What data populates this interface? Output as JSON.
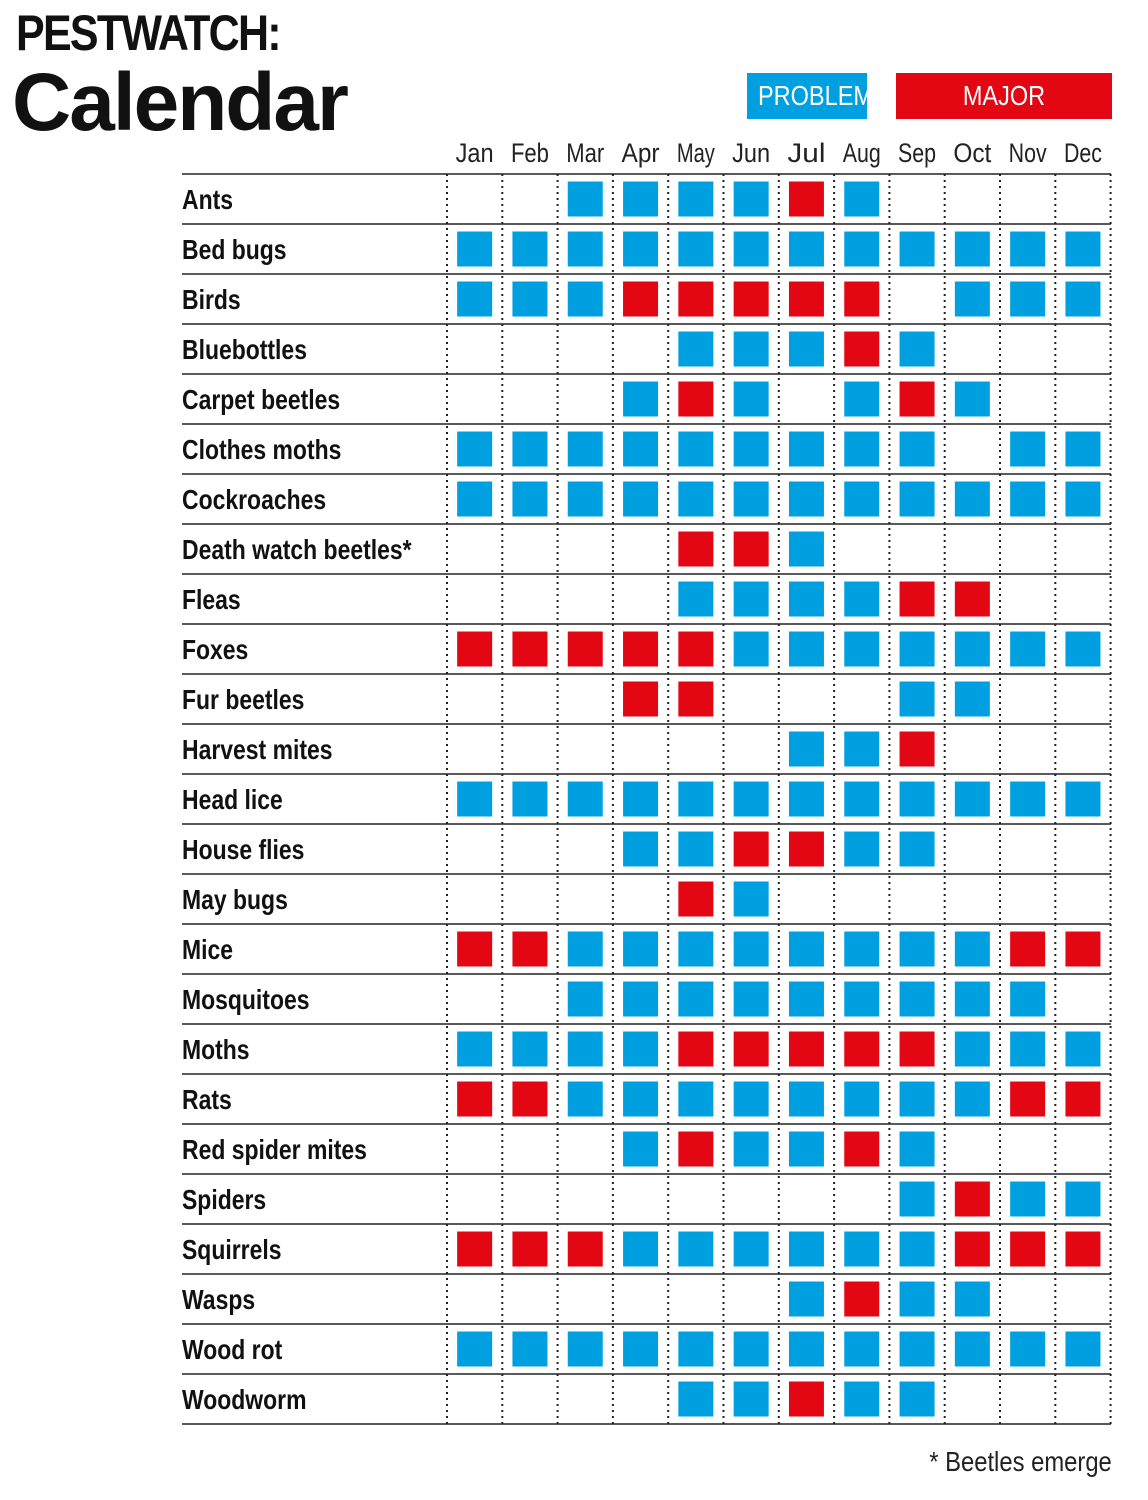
{
  "title_line1": "PESTWATCH:",
  "title_line2": "Calendar",
  "legend": {
    "problem": "PROBLEM",
    "major_problem": "MAJOR PROBLEM"
  },
  "colors": {
    "problem": "#00a0e0",
    "major_problem": "#e30613"
  },
  "footnote": "* Beetles emerge",
  "chart_data": {
    "type": "heatmap",
    "title": "PESTWATCH: Calendar",
    "months": [
      "Jan",
      "Feb",
      "Mar",
      "Apr",
      "May",
      "Jun",
      "Jul",
      "Aug",
      "Sep",
      "Oct",
      "Nov",
      "Dec"
    ],
    "level_key": {
      "0": "none",
      "1": "PROBLEM",
      "2": "MAJOR PROBLEM"
    },
    "rows": [
      {
        "pest": "Ants",
        "levels": [
          0,
          0,
          1,
          1,
          1,
          1,
          2,
          1,
          0,
          0,
          0,
          0
        ]
      },
      {
        "pest": "Bed bugs",
        "levels": [
          1,
          1,
          1,
          1,
          1,
          1,
          1,
          1,
          1,
          1,
          1,
          1
        ]
      },
      {
        "pest": "Birds",
        "levels": [
          1,
          1,
          1,
          2,
          2,
          2,
          2,
          2,
          0,
          1,
          1,
          1
        ]
      },
      {
        "pest": "Bluebottles",
        "levels": [
          0,
          0,
          0,
          0,
          1,
          1,
          1,
          2,
          1,
          0,
          0,
          0
        ]
      },
      {
        "pest": "Carpet beetles",
        "levels": [
          0,
          0,
          0,
          1,
          2,
          1,
          0,
          1,
          2,
          1,
          0,
          0
        ]
      },
      {
        "pest": "Clothes moths",
        "levels": [
          1,
          1,
          1,
          1,
          1,
          1,
          1,
          1,
          1,
          0,
          1,
          1
        ]
      },
      {
        "pest": "Cockroaches",
        "levels": [
          1,
          1,
          1,
          1,
          1,
          1,
          1,
          1,
          1,
          1,
          1,
          1
        ]
      },
      {
        "pest": "Death watch beetles*",
        "levels": [
          0,
          0,
          0,
          0,
          2,
          2,
          1,
          0,
          0,
          0,
          0,
          0
        ]
      },
      {
        "pest": "Fleas",
        "levels": [
          0,
          0,
          0,
          0,
          1,
          1,
          1,
          1,
          2,
          2,
          0,
          0
        ]
      },
      {
        "pest": "Foxes",
        "levels": [
          2,
          2,
          2,
          2,
          2,
          1,
          1,
          1,
          1,
          1,
          1,
          1
        ]
      },
      {
        "pest": "Fur beetles",
        "levels": [
          0,
          0,
          0,
          2,
          2,
          0,
          0,
          0,
          1,
          1,
          0,
          0
        ]
      },
      {
        "pest": "Harvest mites",
        "levels": [
          0,
          0,
          0,
          0,
          0,
          0,
          1,
          1,
          2,
          0,
          0,
          0
        ]
      },
      {
        "pest": "Head lice",
        "levels": [
          1,
          1,
          1,
          1,
          1,
          1,
          1,
          1,
          1,
          1,
          1,
          1
        ]
      },
      {
        "pest": "House flies",
        "levels": [
          0,
          0,
          0,
          1,
          1,
          2,
          2,
          1,
          1,
          0,
          0,
          0
        ]
      },
      {
        "pest": "May bugs",
        "levels": [
          0,
          0,
          0,
          0,
          2,
          1,
          0,
          0,
          0,
          0,
          0,
          0
        ]
      },
      {
        "pest": "Mice",
        "levels": [
          2,
          2,
          1,
          1,
          1,
          1,
          1,
          1,
          1,
          1,
          2,
          2
        ]
      },
      {
        "pest": "Mosquitoes",
        "levels": [
          0,
          0,
          1,
          1,
          1,
          1,
          1,
          1,
          1,
          1,
          1,
          0
        ]
      },
      {
        "pest": "Moths",
        "levels": [
          1,
          1,
          1,
          1,
          2,
          2,
          2,
          2,
          2,
          1,
          1,
          1
        ]
      },
      {
        "pest": "Rats",
        "levels": [
          2,
          2,
          1,
          1,
          1,
          1,
          1,
          1,
          1,
          1,
          2,
          2
        ]
      },
      {
        "pest": "Red spider mites",
        "levels": [
          0,
          0,
          0,
          1,
          2,
          1,
          1,
          2,
          1,
          0,
          0,
          0
        ]
      },
      {
        "pest": "Spiders",
        "levels": [
          0,
          0,
          0,
          0,
          0,
          0,
          0,
          0,
          1,
          2,
          1,
          1
        ]
      },
      {
        "pest": "Squirrels",
        "levels": [
          2,
          2,
          2,
          1,
          1,
          1,
          1,
          1,
          1,
          2,
          2,
          2
        ]
      },
      {
        "pest": "Wasps",
        "levels": [
          0,
          0,
          0,
          0,
          0,
          0,
          1,
          2,
          1,
          1,
          0,
          0
        ]
      },
      {
        "pest": "Wood rot",
        "levels": [
          1,
          1,
          1,
          1,
          1,
          1,
          1,
          1,
          1,
          1,
          1,
          1
        ]
      },
      {
        "pest": "Woodworm",
        "levels": [
          0,
          0,
          0,
          0,
          1,
          1,
          2,
          1,
          1,
          0,
          0,
          0
        ]
      }
    ]
  }
}
